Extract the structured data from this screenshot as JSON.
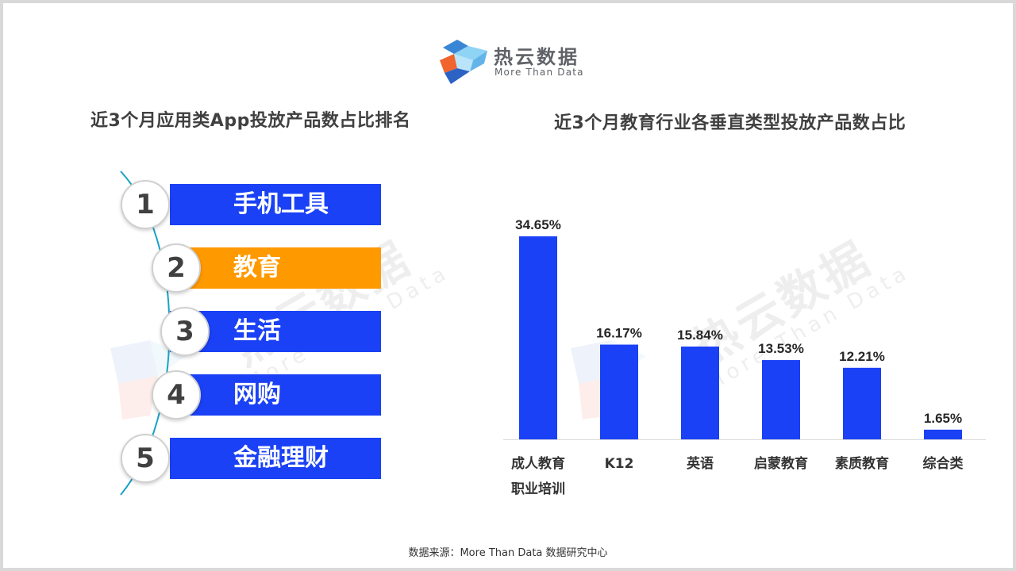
{
  "brand": {
    "name": "热云数据",
    "tagline": "More Than Data"
  },
  "left_title": "近3个月应用类App投放产品数占比排名",
  "ranking": [
    {
      "rank": "1",
      "label": "手机工具",
      "color": "#1a41f5"
    },
    {
      "rank": "2",
      "label": "教育",
      "color": "#ff9900"
    },
    {
      "rank": "3",
      "label": "生活",
      "color": "#1a41f5"
    },
    {
      "rank": "4",
      "label": "网购",
      "color": "#1a41f5"
    },
    {
      "rank": "5",
      "label": "金融理财",
      "color": "#1a41f5"
    }
  ],
  "right_title": "近3个月教育行业各垂直类型投放产品数占比",
  "chart_data": {
    "type": "bar",
    "title": "近3个月教育行业各垂直类型投放产品数占比",
    "categories": [
      "成人教育职业培训",
      "K12",
      "英语",
      "启蒙教育",
      "素质教育",
      "综合类"
    ],
    "category_lines": [
      [
        "成人教育",
        "职业培训"
      ],
      [
        "K12"
      ],
      [
        "英语"
      ],
      [
        "启蒙教育"
      ],
      [
        "素质教育"
      ],
      [
        "综合类"
      ]
    ],
    "values": [
      34.65,
      16.17,
      15.84,
      13.53,
      12.21,
      1.65
    ],
    "value_labels": [
      "34.65%",
      "16.17%",
      "15.84%",
      "13.53%",
      "12.21%",
      "1.65%"
    ],
    "color": "#1a41f5",
    "ylim": [
      0,
      40
    ],
    "xlabel": "",
    "ylabel": "",
    "grid": false,
    "legend": "none"
  },
  "source_note": "数据来源：More Than Data 数据研究中心"
}
